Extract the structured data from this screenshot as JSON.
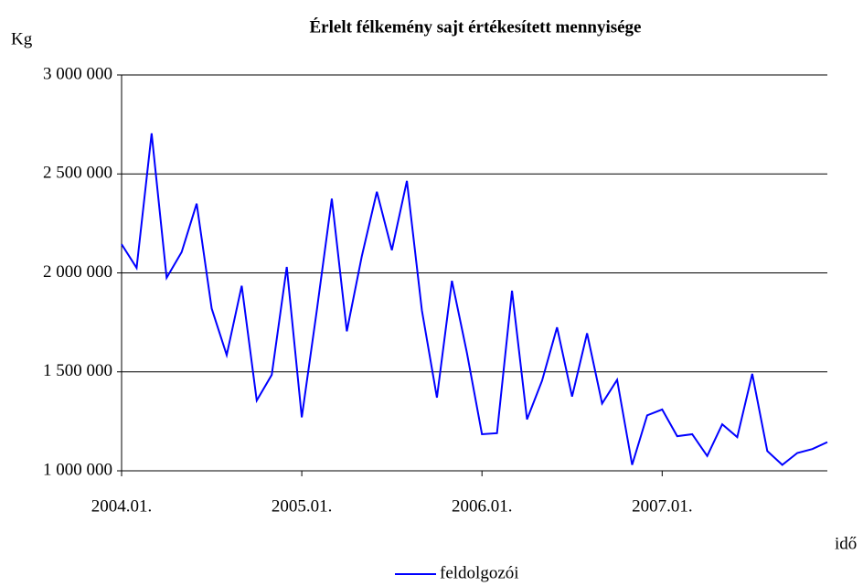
{
  "chart_data": {
    "type": "line",
    "title": "Érlelt félkemény sajt értékesített mennyisége",
    "y_axis_label": "Kg",
    "x_axis_label": "idő",
    "categories": [
      "2004.01.",
      null,
      null,
      null,
      null,
      null,
      null,
      null,
      null,
      null,
      null,
      null,
      "2005.01.",
      null,
      null,
      null,
      null,
      null,
      null,
      null,
      null,
      null,
      null,
      null,
      "2006.01.",
      null,
      null,
      null,
      null,
      null,
      null,
      null,
      null,
      null,
      null,
      null,
      "2007.01.",
      null,
      null,
      null,
      null,
      null,
      null,
      null,
      null,
      null,
      null,
      null
    ],
    "series": [
      {
        "name": "feldolgozói",
        "color": "#0000ff",
        "values": [
          2145000,
          2025000,
          2705000,
          1975000,
          2105000,
          2350000,
          1820000,
          1585000,
          1935000,
          1355000,
          1485000,
          2030000,
          1270000,
          1810000,
          2375000,
          1705000,
          2085000,
          2410000,
          2115000,
          2465000,
          1810000,
          1370000,
          1960000,
          1595000,
          1185000,
          1190000,
          1910000,
          1260000,
          1455000,
          1725000,
          1375000,
          1695000,
          1340000,
          1460000,
          1030000,
          1280000,
          1310000,
          1175000,
          1185000,
          1075000,
          1235000,
          1170000,
          1490000,
          1100000,
          1030000,
          1090000,
          1110000,
          1145000
        ]
      }
    ],
    "ylim": [
      1000000,
      3000000
    ],
    "yticks": [
      {
        "value": 1000000,
        "label": "1 000 000"
      },
      {
        "value": 1500000,
        "label": "1 500 000"
      },
      {
        "value": 2000000,
        "label": "2 000 000"
      },
      {
        "value": 2500000,
        "label": "2 500 000"
      },
      {
        "value": 3000000,
        "label": "3 000 000"
      }
    ],
    "grid": true,
    "legend": "bottom"
  }
}
